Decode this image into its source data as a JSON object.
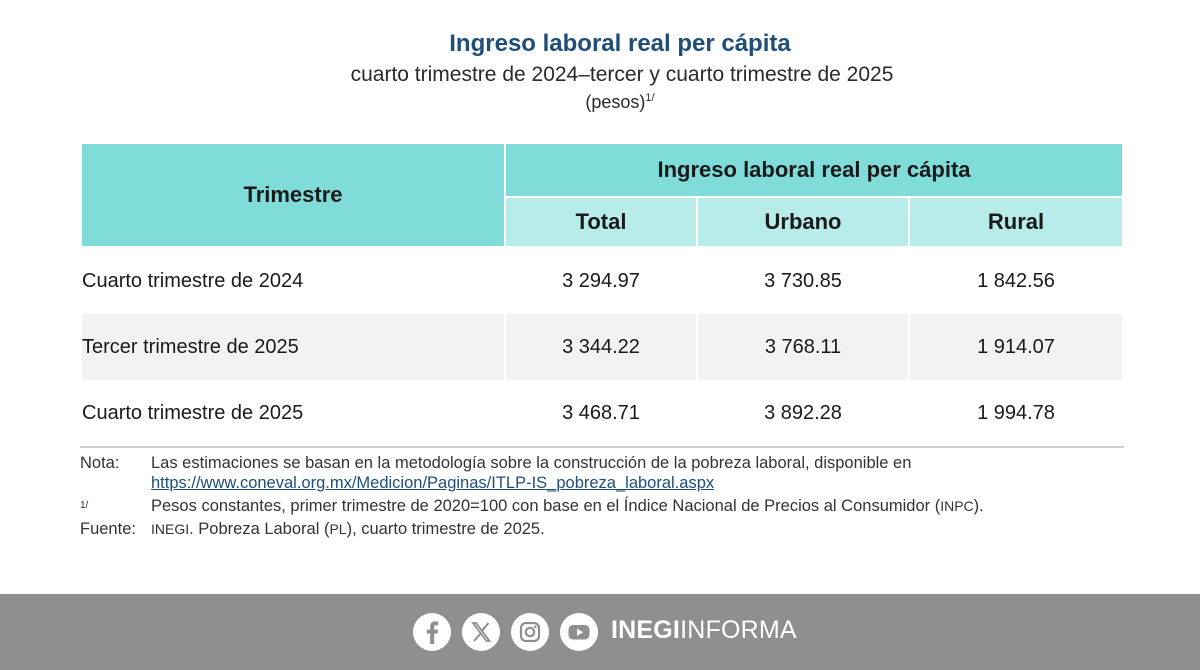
{
  "header": {
    "title": "Ingreso laboral real per cápita",
    "subtitle": "cuarto trimestre de 2024–tercer y cuarto trimestre de 2025",
    "units": "(pesos)",
    "units_note": "1/"
  },
  "table": {
    "row_header": "Trimestre",
    "group_header": "Ingreso laboral real per cápita",
    "columns": [
      "Total",
      "Urbano",
      "Rural"
    ],
    "rows": [
      {
        "label": "Cuarto trimestre de 2024",
        "total": "3 294.97",
        "urbano": "3 730.85",
        "rural": "1 842.56"
      },
      {
        "label": "Tercer trimestre de 2025",
        "total": "3 344.22",
        "urbano": "3 768.11",
        "rural": "1 914.07"
      },
      {
        "label": "Cuarto trimestre de 2025",
        "total": "3 468.71",
        "urbano": "3 892.28",
        "rural": "1 994.78"
      }
    ]
  },
  "notes": {
    "nota_label": "Nota:",
    "nota_text": "Las estimaciones se basan en la metodología sobre la construcción de la pobreza laboral, disponible en",
    "nota_link": "https://www.coneval.org.mx/Medicion/Paginas/ITLP-IS_pobreza_laboral.aspx",
    "footnote_label": "1/",
    "footnote_text_a": "Pesos constantes, primer trimestre de 2020=100 con base en el Índice Nacional de Precios al Consumidor (",
    "footnote_abbr": "INPC",
    "footnote_text_b": ").",
    "fuente_label": "Fuente:",
    "fuente_org": "INEGI",
    "fuente_text_a": ". Pobreza Laboral (",
    "fuente_abbr": "PL",
    "fuente_text_b": "), cuarto trimestre de 2025."
  },
  "footer": {
    "background": "#8f8f8f",
    "social_icons": [
      "facebook-icon",
      "x-icon",
      "instagram-icon",
      "youtube-icon"
    ],
    "brand_bold": "INEGI",
    "brand_light": "INFORMA"
  }
}
